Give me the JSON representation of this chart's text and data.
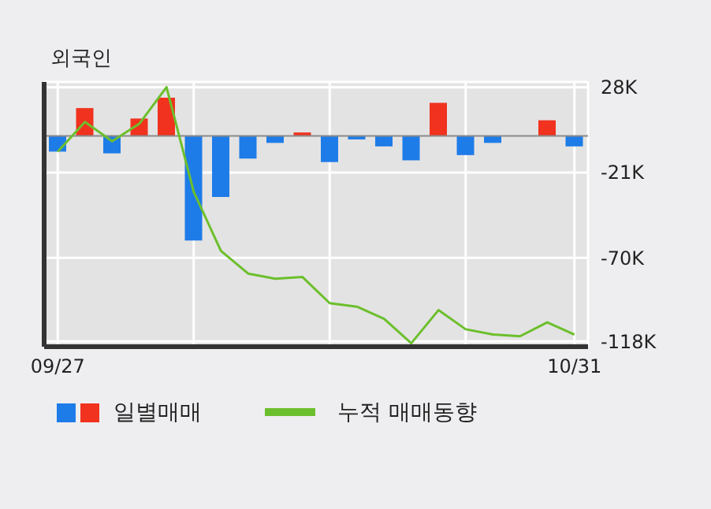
{
  "chart_data": {
    "type": "bar",
    "title": "외국인",
    "categories": [
      "09/27",
      null,
      null,
      null,
      null,
      null,
      null,
      null,
      null,
      null,
      null,
      null,
      null,
      null,
      null,
      null,
      null,
      null,
      null,
      "10/31"
    ],
    "series": [
      {
        "name": "일별매매",
        "colors": [
          "#1e7ce8",
          "#f0321e",
          "#1e7ce8",
          "#f0321e",
          "#f0321e",
          "#1e7ce8",
          "#1e7ce8",
          "#1e7ce8",
          "#1e7ce8",
          "#f0321e",
          "#1e7ce8",
          "#1e7ce8",
          "#1e7ce8",
          "#1e7ce8",
          "#f0321e",
          "#1e7ce8",
          "#1e7ce8",
          "#1e7ce8",
          "#f0321e",
          "#1e7ce8"
        ],
        "values": [
          -9,
          16,
          -10,
          10,
          22,
          -60,
          -35,
          -13,
          -4,
          2,
          -15,
          -2,
          -6,
          -14,
          19,
          -11,
          -4,
          0,
          9,
          -6
        ]
      },
      {
        "name": "누적 매매동향",
        "type": "line",
        "color": "#6cbf2c",
        "values": [
          -9,
          8,
          -3,
          7,
          28,
          -32,
          -66,
          -79,
          -82,
          -81,
          -96,
          -98,
          -105,
          -119,
          -100,
          -111,
          -114,
          -115,
          -107,
          -114
        ]
      }
    ],
    "ylim": [
      -121,
      31
    ],
    "yticks": [
      {
        "value": 28,
        "label": "28K"
      },
      {
        "value": -21,
        "label": "-21K"
      },
      {
        "value": -70,
        "label": "-70K"
      },
      {
        "value": -118,
        "label": "-118K"
      }
    ],
    "ref_lines": [
      {
        "axis": "y",
        "value": 0,
        "color": "#8a8a8a"
      }
    ],
    "grid": true,
    "legend": "bottom"
  }
}
